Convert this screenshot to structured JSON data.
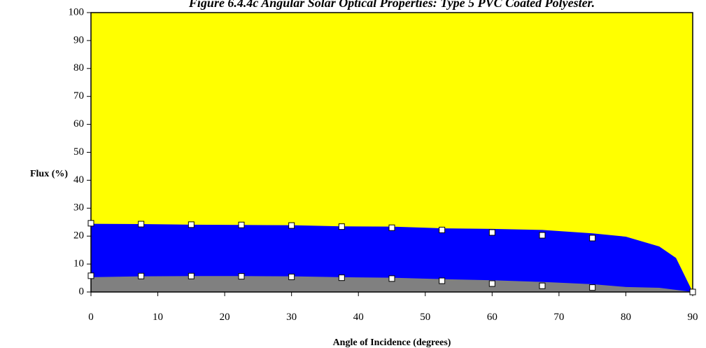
{
  "chart_data": {
    "type": "area",
    "title": "Figure 6.4.4c Angular Solar Optical Properties: Type 5 PVC Coated Polyester.",
    "xlabel": "Angle of Incidence (degrees)",
    "ylabel": "Flux (%)",
    "xlim": [
      0,
      90
    ],
    "ylim": [
      0,
      100
    ],
    "xticks": [
      "0",
      "10",
      "20",
      "30",
      "40",
      "50",
      "60",
      "70",
      "80",
      "90"
    ],
    "yticks": [
      "0",
      "10",
      "20",
      "30",
      "40",
      "50",
      "60",
      "70",
      "80",
      "90",
      "100"
    ],
    "grid": false,
    "legend": "none",
    "colors": {
      "top_area": "#ffff00",
      "middle_area": "#0000ff",
      "bottom_area": "#808080",
      "marker_fill": "#ffffff"
    },
    "series": [
      {
        "x": [
          0,
          7.5,
          15,
          22.5,
          30,
          37.5,
          45,
          52.5,
          60,
          67.5,
          75,
          80,
          85,
          87.5,
          90
        ],
        "values": [
          24.4,
          24.3,
          24.1,
          24.0,
          23.9,
          23.5,
          23.4,
          22.8,
          22.6,
          22.2,
          21.0,
          19.8,
          16.3,
          12.2,
          0
        ]
      },
      {
        "x": [
          0,
          7.5,
          15,
          22.5,
          30,
          37.5,
          45,
          52.5,
          60,
          67.5,
          75,
          80,
          85,
          90
        ],
        "values": [
          5.3,
          5.6,
          5.7,
          5.7,
          5.6,
          5.3,
          5.1,
          4.6,
          4.2,
          3.6,
          2.8,
          1.8,
          1.5,
          0
        ]
      }
    ],
    "markers": [
      {
        "x": [
          0,
          7.5,
          15,
          22.5,
          30,
          37.5,
          45,
          52.5,
          60,
          67.5,
          75,
          90
        ],
        "values": [
          24.6,
          24.3,
          24.1,
          24.0,
          23.8,
          23.4,
          23.0,
          22.2,
          21.3,
          20.3,
          19.3,
          0
        ]
      },
      {
        "x": [
          0,
          7.5,
          15,
          22.5,
          30,
          37.5,
          45,
          52.5,
          60,
          67.5,
          75
        ],
        "values": [
          5.8,
          5.7,
          5.7,
          5.6,
          5.4,
          5.1,
          4.8,
          4.0,
          3.0,
          2.2,
          1.6
        ]
      }
    ]
  }
}
